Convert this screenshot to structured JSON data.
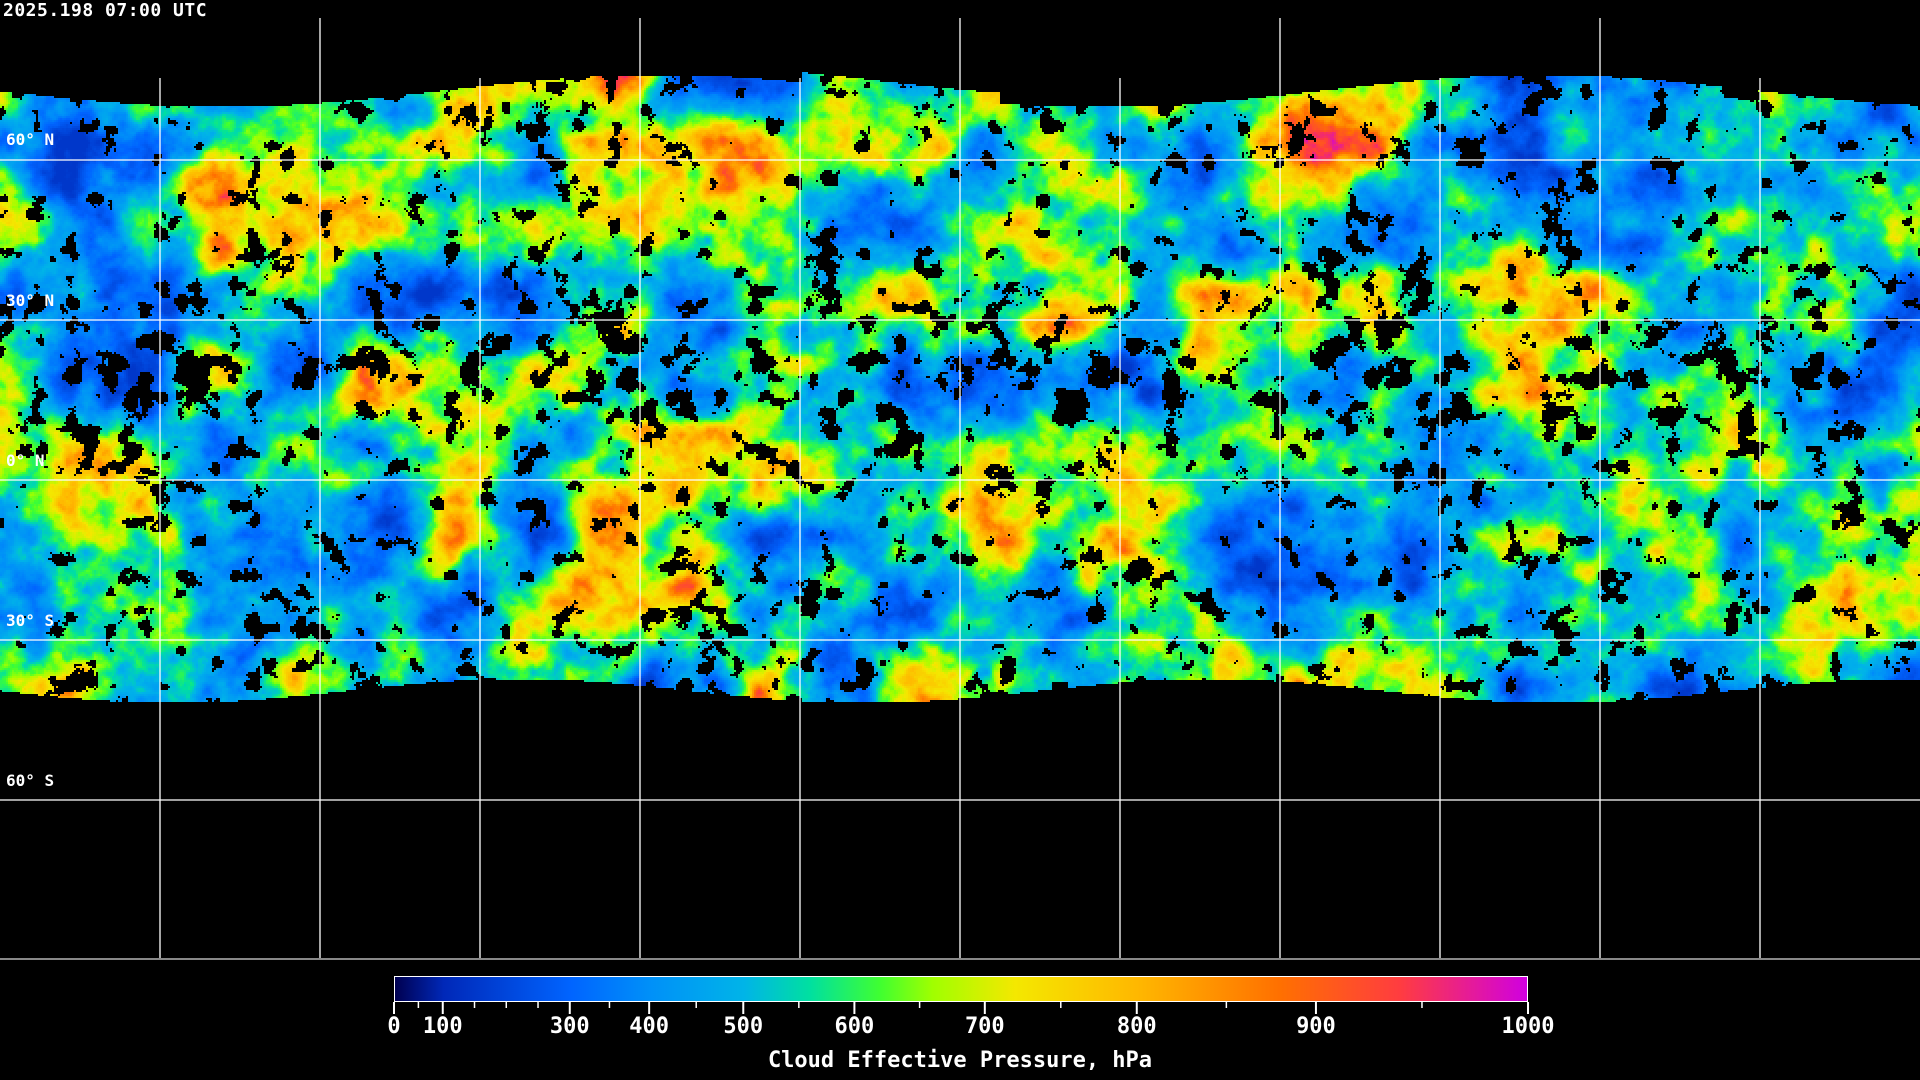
{
  "title": "2025.198 07:00 UTC",
  "map": {
    "projection": "equirectangular",
    "graticule_step_deg": 30,
    "lat_labels": [
      "60° N",
      "30° N",
      "0° N",
      "30° S",
      "60° S"
    ],
    "no_data_color": "#000000",
    "coastline_color": "#ffffff",
    "grid_color": "#ffffff"
  },
  "colorbar": {
    "title": "Cloud Effective Pressure, hPa",
    "range": [
      0,
      1000
    ],
    "tick_labels": [
      "0",
      "100",
      "300",
      "400",
      "500",
      "600",
      "700",
      "800",
      "900",
      "1000"
    ],
    "stops": [
      {
        "value": 0,
        "color": "#000050"
      },
      {
        "value": 100,
        "color": "#0028b8"
      },
      {
        "value": 300,
        "color": "#0064ff"
      },
      {
        "value": 400,
        "color": "#0090f8"
      },
      {
        "value": 500,
        "color": "#00b4e8"
      },
      {
        "value": 560,
        "color": "#00e0a0"
      },
      {
        "value": 620,
        "color": "#40ff30"
      },
      {
        "value": 660,
        "color": "#a0ff00"
      },
      {
        "value": 720,
        "color": "#f4e800"
      },
      {
        "value": 800,
        "color": "#ffb800"
      },
      {
        "value": 880,
        "color": "#ff7000"
      },
      {
        "value": 940,
        "color": "#ff3c40"
      },
      {
        "value": 1000,
        "color": "#d000e0"
      }
    ]
  }
}
